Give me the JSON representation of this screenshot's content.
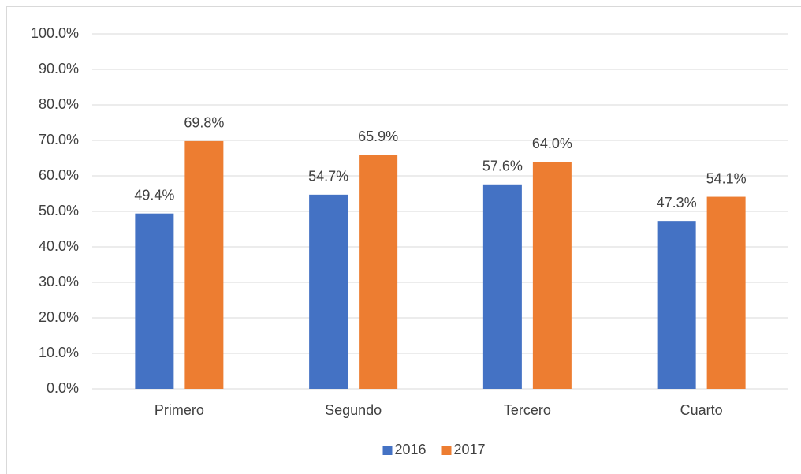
{
  "chart_data": {
    "type": "bar",
    "categories": [
      "Primero",
      "Segundo",
      "Tercero",
      "Cuarto"
    ],
    "series": [
      {
        "name": "2016",
        "color": "#4472c4",
        "values": [
          49.4,
          54.7,
          57.6,
          47.3
        ],
        "value_labels": [
          "49.4%",
          "54.7%",
          "57.6%",
          "47.3%"
        ]
      },
      {
        "name": "2017",
        "color": "#ed7d31",
        "values": [
          69.8,
          65.9,
          64.0,
          54.1
        ],
        "value_labels": [
          "69.8%",
          "65.9%",
          "64.0%",
          "54.1%"
        ]
      }
    ],
    "ylim": [
      0,
      100
    ],
    "yticks": [
      {
        "value": 0,
        "label": "0.0%"
      },
      {
        "value": 10,
        "label": "10.0%"
      },
      {
        "value": 20,
        "label": "20.0%"
      },
      {
        "value": 30,
        "label": "30.0%"
      },
      {
        "value": 40,
        "label": "40.0%"
      },
      {
        "value": 50,
        "label": "50.0%"
      },
      {
        "value": 60,
        "label": "60.0%"
      },
      {
        "value": 70,
        "label": "70.0%"
      },
      {
        "value": 80,
        "label": "80.0%"
      },
      {
        "value": 90,
        "label": "90.0%"
      },
      {
        "value": 100,
        "label": "100.0%"
      }
    ],
    "grid": true,
    "legend": "bottom"
  }
}
